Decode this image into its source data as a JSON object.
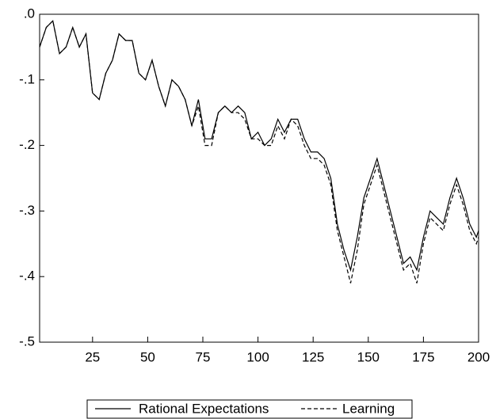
{
  "chart_data": {
    "type": "line",
    "x": [
      1,
      4,
      7,
      10,
      13,
      16,
      19,
      22,
      25,
      28,
      31,
      34,
      37,
      40,
      43,
      46,
      49,
      52,
      55,
      58,
      61,
      64,
      67,
      70,
      73,
      76,
      79,
      82,
      85,
      88,
      91,
      94,
      97,
      100,
      103,
      106,
      109,
      112,
      115,
      118,
      121,
      124,
      127,
      130,
      133,
      136,
      139,
      142,
      145,
      148,
      151,
      154,
      157,
      160,
      163,
      166,
      169,
      172,
      175,
      178,
      181,
      184,
      187,
      190,
      193,
      196,
      199,
      200
    ],
    "series": [
      {
        "name": "Rational Expectations",
        "color": "#000000",
        "line_style": "solid",
        "values": [
          -0.05,
          -0.02,
          -0.01,
          -0.06,
          -0.05,
          -0.02,
          -0.05,
          -0.03,
          -0.12,
          -0.13,
          -0.09,
          -0.07,
          -0.03,
          -0.04,
          -0.04,
          -0.09,
          -0.1,
          -0.07,
          -0.11,
          -0.14,
          -0.1,
          -0.11,
          -0.13,
          -0.17,
          -0.13,
          -0.19,
          -0.19,
          -0.15,
          -0.14,
          -0.15,
          -0.14,
          -0.15,
          -0.19,
          -0.18,
          -0.2,
          -0.19,
          -0.16,
          -0.18,
          -0.16,
          -0.16,
          -0.19,
          -0.21,
          -0.21,
          -0.22,
          -0.25,
          -0.32,
          -0.36,
          -0.39,
          -0.34,
          -0.28,
          -0.25,
          -0.22,
          -0.26,
          -0.3,
          -0.34,
          -0.38,
          -0.37,
          -0.39,
          -0.34,
          -0.3,
          -0.31,
          -0.32,
          -0.28,
          -0.25,
          -0.28,
          -0.32,
          -0.34,
          -0.33
        ]
      },
      {
        "name": "Learning",
        "color": "#000000",
        "line_style": "dashed",
        "values": [
          -0.05,
          -0.02,
          -0.01,
          -0.06,
          -0.05,
          -0.02,
          -0.05,
          -0.03,
          -0.12,
          -0.13,
          -0.09,
          -0.07,
          -0.03,
          -0.04,
          -0.04,
          -0.09,
          -0.1,
          -0.07,
          -0.11,
          -0.14,
          -0.1,
          -0.11,
          -0.13,
          -0.17,
          -0.14,
          -0.2,
          -0.2,
          -0.15,
          -0.14,
          -0.15,
          -0.15,
          -0.16,
          -0.19,
          -0.19,
          -0.2,
          -0.2,
          -0.17,
          -0.19,
          -0.16,
          -0.17,
          -0.2,
          -0.22,
          -0.22,
          -0.23,
          -0.26,
          -0.33,
          -0.37,
          -0.41,
          -0.36,
          -0.29,
          -0.26,
          -0.23,
          -0.27,
          -0.31,
          -0.35,
          -0.39,
          -0.38,
          -0.41,
          -0.35,
          -0.31,
          -0.32,
          -0.33,
          -0.29,
          -0.26,
          -0.29,
          -0.33,
          -0.35,
          -0.34
        ]
      }
    ],
    "xlim": [
      1,
      200
    ],
    "xticks": [
      25,
      50,
      75,
      100,
      125,
      150,
      175,
      200
    ],
    "ylim": [
      -0.5,
      0
    ],
    "yticks": [
      {
        "value": -0.5,
        "label": "-.5"
      },
      {
        "value": -0.4,
        "label": "-.4"
      },
      {
        "value": -0.3,
        "label": "-.3"
      },
      {
        "value": -0.2,
        "label": "-.2"
      },
      {
        "value": -0.1,
        "label": "-.1"
      },
      {
        "value": 0,
        "label": ".0"
      }
    ],
    "grid": false,
    "legend": "bottom"
  }
}
